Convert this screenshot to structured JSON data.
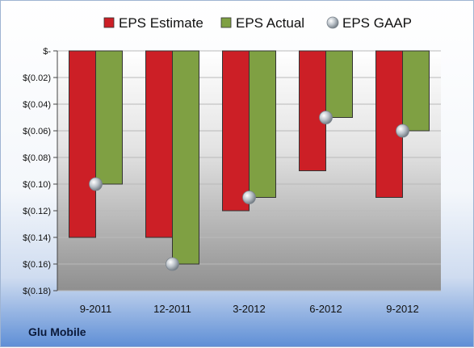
{
  "company": "Glu Mobile",
  "chart_data": {
    "type": "bar",
    "categories": [
      "9-2011",
      "12-2011",
      "3-2012",
      "6-2012",
      "9-2012"
    ],
    "series": [
      {
        "name": "EPS Estimate",
        "color": "#cc1f26",
        "values": [
          -0.14,
          -0.14,
          -0.12,
          -0.09,
          -0.11
        ]
      },
      {
        "name": "EPS Actual",
        "color": "#7fa043",
        "values": [
          -0.1,
          -0.16,
          -0.11,
          -0.05,
          -0.06
        ]
      }
    ],
    "points": {
      "name": "EPS GAAP",
      "color": "#a9b2bb",
      "values": [
        -0.1,
        -0.16,
        -0.11,
        -0.05,
        -0.06
      ]
    },
    "ylim": [
      -0.18,
      0
    ],
    "yticks": [
      0,
      -0.02,
      -0.04,
      -0.06,
      -0.08,
      -0.1,
      -0.12,
      -0.14,
      -0.16,
      -0.18
    ],
    "ytick_labels": [
      "$-",
      "$(0.02)",
      "$(0.04)",
      "$(0.06)",
      "$(0.08)",
      "$(0.10)",
      "$(0.12)",
      "$(0.14)",
      "$(0.16)",
      "$(0.18)"
    ],
    "legend": "top",
    "grid": true
  }
}
